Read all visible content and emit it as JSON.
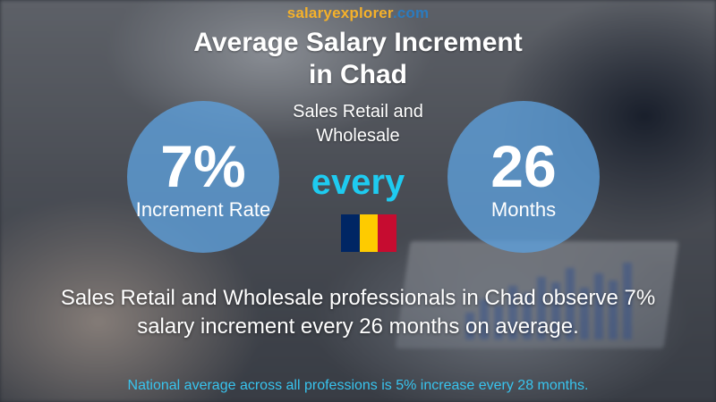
{
  "brand": {
    "part1": "salary",
    "part2": "explorer",
    "part3": ".com"
  },
  "title": {
    "line1": "Average Salary Increment",
    "line2": "in Chad"
  },
  "subtitle": {
    "line1": "Sales Retail and",
    "line2": "Wholesale"
  },
  "increment": {
    "value": "7%",
    "label": "Increment Rate"
  },
  "connector": "every",
  "period": {
    "value": "26",
    "label": "Months"
  },
  "flag": {
    "country": "Chad",
    "colors": [
      "#002664",
      "#FECB00",
      "#C60C30"
    ]
  },
  "summary": {
    "line1": "Sales Retail and Wholesale professionals in Chad observe 7%",
    "line2": "salary increment every 26 months on average."
  },
  "footnote": "National average across all professions is 5% increase every 28 months.",
  "colors": {
    "brand_orange": "#f5b12a",
    "brand_blue": "#2b7bbf",
    "circle_fill": "#5ea0dc",
    "every_text": "#1ecbf0",
    "footnote_text": "#38c4ee"
  }
}
